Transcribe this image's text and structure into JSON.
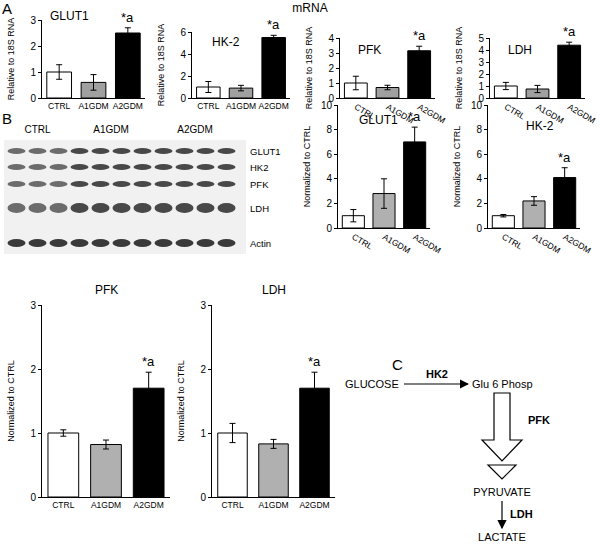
{
  "panels": [
    "A",
    "B",
    "C"
  ],
  "mrna_label": "mRNA",
  "chart_data": [
    {
      "type": "bar",
      "title": "GLUT1",
      "ylabel": "Relative to 18S RNA",
      "categories": [
        "CTRL",
        "A1GDM",
        "A2GDM"
      ],
      "values": [
        1.0,
        0.6,
        2.5
      ],
      "errors": [
        0.28,
        0.3,
        0.2
      ],
      "colors": [
        "#ffffff",
        "#a0a0a0",
        "#000000"
      ],
      "ylim": [
        0,
        3
      ],
      "yticks": [
        0,
        1,
        2,
        3
      ],
      "grid": false,
      "annotations": [
        {
          "category": "A2GDM",
          "text": "*a"
        }
      ]
    },
    {
      "type": "bar",
      "title": "HK-2",
      "ylabel": "Relative to 18S RNA",
      "categories": [
        "CTRL",
        "A1GDM",
        "A2GDM"
      ],
      "values": [
        1.0,
        0.9,
        5.5
      ],
      "errors": [
        0.5,
        0.25,
        0.2
      ],
      "colors": [
        "#ffffff",
        "#a0a0a0",
        "#000000"
      ],
      "ylim": [
        0,
        6
      ],
      "yticks": [
        0,
        2,
        4,
        6
      ],
      "grid": false,
      "annotations": [
        {
          "category": "A2GDM",
          "text": "*a"
        }
      ]
    },
    {
      "type": "bar",
      "title": "PFK",
      "ylabel": "Relative to 18S RNA",
      "categories": [
        "CTRL",
        "A1GDM",
        "A2GDM"
      ],
      "values": [
        1.0,
        0.7,
        3.15
      ],
      "errors": [
        0.45,
        0.15,
        0.3
      ],
      "colors": [
        "#ffffff",
        "#a0a0a0",
        "#000000"
      ],
      "ylim": [
        0,
        4
      ],
      "yticks": [
        0,
        1,
        2,
        3,
        4
      ],
      "grid": false,
      "annotations": [
        {
          "category": "A2GDM",
          "text": "*a"
        }
      ]
    },
    {
      "type": "bar",
      "title": "LDH",
      "ylabel": "Relative to 18S RNA",
      "categories": [
        "CTRL",
        "A1GDM",
        "A2GDM"
      ],
      "values": [
        1.0,
        0.75,
        4.4
      ],
      "errors": [
        0.3,
        0.3,
        0.25
      ],
      "colors": [
        "#ffffff",
        "#a0a0a0",
        "#000000"
      ],
      "ylim": [
        0,
        5
      ],
      "yticks": [
        0,
        1,
        2,
        3,
        4,
        5
      ],
      "grid": false,
      "annotations": [
        {
          "category": "A2GDM",
          "text": "*a"
        }
      ]
    },
    {
      "type": "bar",
      "title": "GLUT1",
      "ylabel": "Normalized to CTRL",
      "categories": [
        "CTRL",
        "A1GDM",
        "A2GDM"
      ],
      "values": [
        1.0,
        2.8,
        7.0
      ],
      "errors": [
        0.5,
        1.2,
        1.2
      ],
      "colors": [
        "#ffffff",
        "#b0b0b0",
        "#000000"
      ],
      "ylim": [
        0,
        10
      ],
      "yticks": [
        0,
        2,
        4,
        6,
        8,
        10
      ],
      "grid": false,
      "annotations": [
        {
          "category": "A2GDM",
          "text": "*a"
        }
      ]
    },
    {
      "type": "bar",
      "title": "HK-2",
      "ylabel": "Normalized to CTRL",
      "categories": [
        "CTRL",
        "A1GDM",
        "A2GDM"
      ],
      "values": [
        1.0,
        2.2,
        4.1
      ],
      "errors": [
        0.1,
        0.35,
        0.8
      ],
      "colors": [
        "#ffffff",
        "#b0b0b0",
        "#000000"
      ],
      "ylim": [
        0,
        10
      ],
      "yticks": [
        0,
        2,
        4,
        6,
        8,
        10
      ],
      "grid": false,
      "annotations": [
        {
          "category": "A2GDM",
          "text": "*a"
        }
      ]
    },
    {
      "type": "bar",
      "title": "PFK",
      "ylabel": "Normalized to CTRL",
      "categories": [
        "CTRL",
        "A1GDM",
        "A2GDM"
      ],
      "values": [
        1.0,
        0.82,
        1.7
      ],
      "errors": [
        0.05,
        0.07,
        0.25
      ],
      "colors": [
        "#ffffff",
        "#b0b0b0",
        "#000000"
      ],
      "ylim": [
        0,
        3
      ],
      "yticks": [
        0,
        1,
        2,
        3
      ],
      "grid": false,
      "annotations": [
        {
          "category": "A2GDM",
          "text": "*a"
        }
      ]
    },
    {
      "type": "bar",
      "title": "LDH",
      "ylabel": "Normalized to CTRL",
      "categories": [
        "CTRL",
        "A1GDM",
        "A2GDM"
      ],
      "values": [
        1.0,
        0.83,
        1.7
      ],
      "errors": [
        0.15,
        0.07,
        0.25
      ],
      "colors": [
        "#ffffff",
        "#b0b0b0",
        "#000000"
      ],
      "ylim": [
        0,
        3
      ],
      "yticks": [
        0,
        1,
        2,
        3
      ],
      "grid": false,
      "annotations": [
        {
          "category": "A2GDM",
          "text": "*a"
        }
      ]
    }
  ],
  "blot": {
    "groups": [
      "CTRL",
      "A1GDM",
      "A2GDM"
    ],
    "bands": [
      "GLUT1",
      "HK2",
      "PFK",
      "LDH",
      "Actin"
    ]
  },
  "diagram": {
    "nodes": [
      "GLUCOSE",
      "Glu 6 Phosp",
      "PYRUVATE",
      "LACTATE"
    ],
    "enzymes": [
      "HK2",
      "PFK",
      "LDH"
    ]
  }
}
